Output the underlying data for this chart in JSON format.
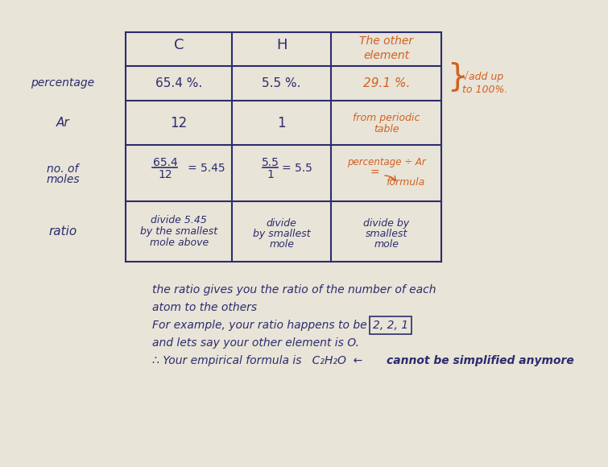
{
  "bg_color": "#e8e4d8",
  "table_line_color": "#2c2c6e",
  "orange_color": "#d46020",
  "blue_color": "#2c2c6e",
  "title_row": [
    "C",
    "H",
    "The other\nelement"
  ],
  "row_labels": [
    "percentage",
    "Ar",
    "no. of moles",
    "ratio"
  ],
  "cell_data": {
    "percentage": [
      "65.4 %.",
      "5.5 %.",
      "29.1 %."
    ],
    "Ar": [
      "12",
      "1",
      "from periodic\ntable"
    ],
    "no_of_moles": [
      "65.4\n—— = 5.45\n12",
      "5.5\n— = 5.5\n1",
      "percentage ÷ Ar\n=         formula"
    ],
    "ratio": [
      "divide 5.45\nby the smallest\nmole above",
      "divide\nby smallest\nmole",
      "divide by\nsmallest\nmole"
    ]
  },
  "annotation_vadd": "add up\nto 100%.",
  "bottom_text_line1": "the ratio gives you the ratio of the number of each",
  "bottom_text_line2": "atom to the others",
  "bottom_text_line3": "For example, your ratio happens to be   2, 2, 1",
  "bottom_text_line4": "and lets say your other element is O.",
  "bottom_text_line5_prefix": "∴ Your empirical formula is   C₂H₂O  ← cannot be simplified anymore",
  "figsize": [
    7.55,
    5.8
  ],
  "dpi": 100
}
